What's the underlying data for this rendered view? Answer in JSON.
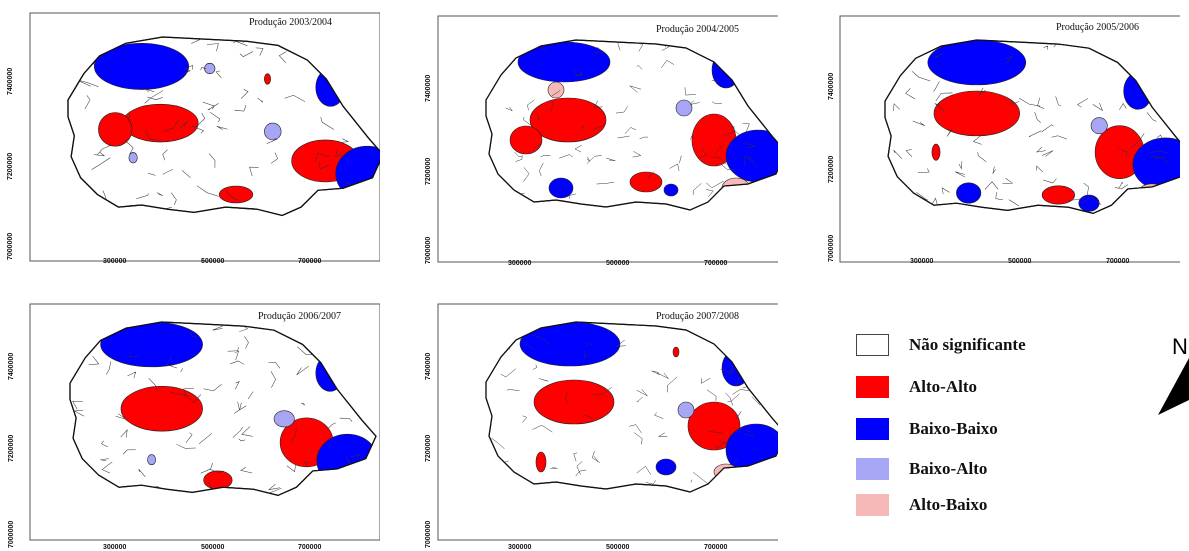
{
  "maps": [
    {
      "title": "Produção 2003/2004",
      "y_ticks": [
        "7400000",
        "7200000",
        "7000000"
      ],
      "x_ticks": [
        "300000",
        "500000",
        "700000"
      ]
    },
    {
      "title": "Produção 2004/2005",
      "y_ticks": [
        "7400000",
        "7200000",
        "7000000"
      ],
      "x_ticks": [
        "300000",
        "500000",
        "700000"
      ]
    },
    {
      "title": "Produção 2005/2006",
      "y_ticks": [
        "7400000",
        "7200000",
        "7000000"
      ],
      "x_ticks": [
        "300000",
        "500000",
        "700000"
      ]
    },
    {
      "title": "Produção 2006/2007",
      "y_ticks": [
        "7400000",
        "7200000",
        "7000000"
      ],
      "x_ticks": [
        "300000",
        "500000",
        "700000"
      ]
    },
    {
      "title": "Produção 2007/2008",
      "y_ticks": [
        "7400000",
        "7200000",
        "7000000"
      ],
      "x_ticks": [
        "300000",
        "500000",
        "700000"
      ]
    }
  ],
  "legend": [
    {
      "label": "Não significante",
      "color": "#ffffff"
    },
    {
      "label": "Alto-Alto",
      "color": "#ff0000"
    },
    {
      "label": "Baixo-Baixo",
      "color": "#0000ff"
    },
    {
      "label": "Baixo-Alto",
      "color": "#a6a6f5"
    },
    {
      "label": "Alto-Baixo",
      "color": "#f7b8b8"
    }
  ],
  "north_arrow": {
    "letter": "N",
    "icon": "north-arrow-icon"
  }
}
